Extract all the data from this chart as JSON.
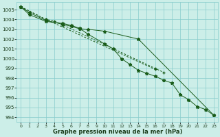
{
  "title": "Graphe pression niveau de la mer (hPa)",
  "background_color": "#cceee8",
  "grid_color": "#88cccc",
  "line_color": "#1a5c1a",
  "xlim": [
    -0.5,
    23.5
  ],
  "ylim": [
    993.5,
    1005.8
  ],
  "x_ticks": [
    0,
    1,
    2,
    3,
    4,
    5,
    6,
    7,
    8,
    9,
    10,
    11,
    12,
    13,
    14,
    15,
    16,
    17,
    18,
    19,
    20,
    21,
    22,
    23
  ],
  "y_ticks": [
    994,
    995,
    996,
    997,
    998,
    999,
    1000,
    1001,
    1002,
    1003,
    1004,
    1005
  ],
  "line1_x": [
    0,
    1,
    3,
    5,
    6,
    7,
    8,
    10,
    14,
    23
  ],
  "line1_y": [
    1005.3,
    1004.7,
    1003.9,
    1003.5,
    1003.3,
    1003.05,
    1003.0,
    1002.8,
    1002.0,
    994.2
  ],
  "line2_x": [
    0,
    1,
    3,
    5,
    6,
    7,
    8,
    10,
    11,
    12,
    13,
    14,
    15,
    16,
    17,
    18,
    19,
    20,
    21,
    22,
    23
  ],
  "line2_y": [
    1005.3,
    1004.5,
    1003.8,
    1003.6,
    1003.4,
    1003.1,
    1002.5,
    1001.5,
    1001.0,
    1000.0,
    999.4,
    998.8,
    998.5,
    998.2,
    997.8,
    997.5,
    996.3,
    995.8,
    995.1,
    994.8,
    994.2
  ],
  "line3_x": [
    0,
    3,
    4,
    16,
    17
  ],
  "line3_y": [
    1005.3,
    1004.0,
    1003.85,
    999.0,
    998.6
  ],
  "line4_x": [
    0,
    3,
    16
  ],
  "line4_y": [
    1005.3,
    1004.0,
    998.9
  ]
}
